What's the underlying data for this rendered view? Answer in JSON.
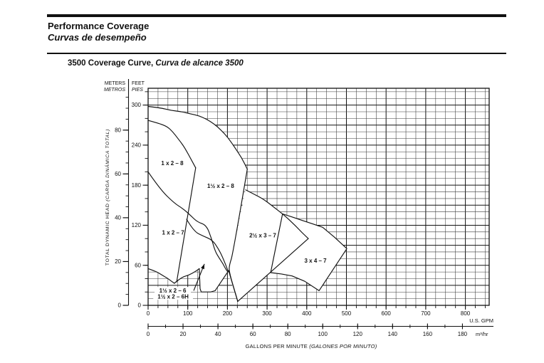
{
  "header": {
    "title_en": "Performance Coverage",
    "title_es": "Curvas de desempeño"
  },
  "heading": {
    "part_en": "3500 Coverage Curve,",
    "part_es": " Curva de alcance 3500"
  },
  "chart_data": {
    "type": "area",
    "variant": "pump-coverage-envelope",
    "title": "3500 Coverage Curve",
    "x_axis": {
      "primary_unit": "U.S. GPM",
      "primary_ticks": [
        0,
        100,
        200,
        300,
        400,
        500,
        600,
        700,
        800
      ],
      "primary_minor_step": 25,
      "primary_range": [
        0,
        860
      ],
      "secondary_unit": "m³/hr",
      "secondary_ticks": [
        0,
        20,
        40,
        60,
        80,
        100,
        120,
        140,
        160,
        180
      ],
      "secondary_minor_step": 10,
      "gpm_per_m3hr": 4.4029,
      "title_en": "GALLONS PER MINUTE ",
      "title_es": "(GALONES POR MINUTO)"
    },
    "y_axis": {
      "feet_label_en": "FEET",
      "feet_label_es": "PIES",
      "feet_ticks": [
        0,
        60,
        120,
        180,
        240,
        300
      ],
      "feet_minor_step": 20,
      "feet_range": [
        0,
        325
      ],
      "meters_label_en": "METERS",
      "meters_label_es": "METROS",
      "meters_ticks": [
        0,
        20,
        40,
        60,
        80
      ],
      "meters_minor_step": 5,
      "ft_per_m": 3.2808,
      "title_en": "TOTAL DYNAMIC HEAD ",
      "title_es": "(CARGA DINÁMICA TOTAL)"
    },
    "grid": {
      "gpm_minor": 25,
      "gpm_major": 100,
      "ft_minor": 10,
      "ft_major": 30
    },
    "regions": [
      {
        "label": "1 x 2 – 8",
        "gpm": 61,
        "ft": 213,
        "bg": false
      },
      {
        "label": "1½ x 2 – 8",
        "gpm": 183,
        "ft": 179,
        "bg": false
      },
      {
        "label": "1 x 2 – 7",
        "gpm": 63,
        "ft": 109,
        "bg": false
      },
      {
        "label": "2½ x 3 – 7",
        "gpm": 289,
        "ft": 105,
        "bg": false
      },
      {
        "label": "3 x 4 – 7",
        "gpm": 422,
        "ft": 67,
        "bg": false
      },
      {
        "label": "1½ x 2 – 6",
        "gpm": 62,
        "ft": 22,
        "bg": true
      },
      {
        "label": "1½ x 2 – 6H",
        "gpm": 63,
        "ft": 13,
        "bg": true
      }
    ],
    "fills": [
      {
        "name": "union-left-envelopes",
        "points": [
          [
            0,
            298
          ],
          [
            30,
            296
          ],
          [
            57,
            292
          ],
          [
            85,
            290
          ],
          [
            106,
            287
          ],
          [
            128,
            284
          ],
          [
            147,
            279
          ],
          [
            166,
            272
          ],
          [
            183,
            263
          ],
          [
            202,
            251
          ],
          [
            219,
            236
          ],
          [
            236,
            221
          ],
          [
            250,
            204
          ],
          [
            214,
            77
          ],
          [
            205,
            61
          ],
          [
            204,
            50
          ],
          [
            226,
            6
          ],
          [
            203,
            52
          ],
          [
            169,
            22
          ],
          [
            158,
            20
          ],
          [
            134,
            20
          ],
          [
            131,
            25
          ],
          [
            129,
            55
          ],
          [
            120,
            51
          ],
          [
            102,
            45
          ],
          [
            84,
            42
          ],
          [
            66,
            33
          ],
          [
            57,
            37
          ],
          [
            36,
            45
          ],
          [
            20,
            51
          ],
          [
            0,
            55
          ]
        ]
      },
      {
        "name": "envelope-2.5x3-7",
        "points": [
          [
            246,
            173
          ],
          [
            269,
            166
          ],
          [
            291,
            159
          ],
          [
            315,
            148
          ],
          [
            339,
            137
          ],
          [
            356,
            128
          ],
          [
            372,
            119
          ],
          [
            388,
            109
          ],
          [
            404,
            100
          ],
          [
            226,
            6
          ],
          [
            202,
            47
          ]
        ]
      },
      {
        "name": "envelope-3x4-7",
        "points": [
          [
            339,
            137
          ],
          [
            365,
            132
          ],
          [
            390,
            127
          ],
          [
            415,
            122
          ],
          [
            440,
            117
          ],
          [
            470,
            102
          ],
          [
            501,
            85
          ],
          [
            431,
            22
          ],
          [
            395,
            36
          ],
          [
            363,
            44
          ],
          [
            336,
            47
          ],
          [
            309,
            49
          ]
        ]
      }
    ],
    "curves": [
      {
        "name": "env-1.5x2-8-top",
        "smooth": true,
        "points": [
          [
            0,
            298
          ],
          [
            30,
            296
          ],
          [
            57,
            292
          ],
          [
            85,
            290
          ],
          [
            106,
            287
          ],
          [
            128,
            284
          ],
          [
            147,
            279
          ],
          [
            166,
            272
          ],
          [
            183,
            263
          ],
          [
            202,
            251
          ],
          [
            219,
            236
          ],
          [
            236,
            221
          ],
          [
            250,
            204
          ]
        ]
      },
      {
        "name": "env-1x2-8-top",
        "smooth": true,
        "points": [
          [
            0,
            277
          ],
          [
            25,
            273
          ],
          [
            48,
            268
          ],
          [
            62,
            260
          ],
          [
            75,
            250
          ],
          [
            88,
            240
          ],
          [
            97,
            231
          ],
          [
            108,
            219
          ],
          [
            120,
            206
          ]
        ]
      },
      {
        "name": "env-1x2-8-right",
        "smooth": false,
        "points": [
          [
            120,
            206
          ],
          [
            72,
            35
          ]
        ]
      },
      {
        "name": "env-1.5x2-8-right",
        "smooth": true,
        "points": [
          [
            250,
            204
          ],
          [
            214,
            77
          ],
          [
            205,
            61
          ],
          [
            204,
            50
          ],
          [
            226,
            6
          ]
        ]
      },
      {
        "name": "env-1x2-7-top",
        "smooth": true,
        "points": [
          [
            0,
            200
          ],
          [
            30,
            174
          ],
          [
            66,
            153
          ],
          [
            90,
            144
          ],
          [
            108,
            134
          ],
          [
            124,
            125
          ],
          [
            147,
            120
          ],
          [
            160,
            100
          ],
          [
            169,
            81
          ],
          [
            180,
            70
          ],
          [
            189,
            62
          ],
          [
            196,
            54
          ],
          [
            201,
            50
          ]
        ]
      },
      {
        "name": "env-1x2-7-bottom",
        "smooth": true,
        "points": [
          [
            97,
            129
          ],
          [
            115,
            111
          ],
          [
            138,
            104
          ],
          [
            162,
            98
          ],
          [
            177,
            85
          ],
          [
            188,
            72
          ],
          [
            196,
            60
          ],
          [
            201,
            52
          ]
        ]
      },
      {
        "name": "env-2.5x3-7-bottom",
        "smooth": false,
        "points": [
          [
            226,
            6
          ],
          [
            404,
            100
          ]
        ]
      },
      {
        "name": "env-2.5x3-7-top",
        "smooth": true,
        "points": [
          [
            246,
            173
          ],
          [
            269,
            166
          ],
          [
            291,
            159
          ],
          [
            315,
            148
          ],
          [
            339,
            137
          ],
          [
            356,
            128
          ],
          [
            372,
            119
          ],
          [
            388,
            109
          ],
          [
            404,
            100
          ]
        ]
      },
      {
        "name": "env-3x4-7-outline",
        "smooth": false,
        "closed": true,
        "points": [
          [
            339,
            137
          ],
          [
            365,
            132
          ],
          [
            390,
            127
          ],
          [
            415,
            122
          ],
          [
            440,
            117
          ],
          [
            470,
            102
          ],
          [
            501,
            85
          ],
          [
            431,
            22
          ],
          [
            395,
            36
          ],
          [
            363,
            44
          ],
          [
            336,
            47
          ],
          [
            309,
            49
          ]
        ]
      },
      {
        "name": "env-1.5x2-6h-top",
        "smooth": true,
        "points": [
          [
            0,
            55
          ],
          [
            20,
            51
          ],
          [
            36,
            45
          ],
          [
            48,
            41
          ],
          [
            57,
            37
          ],
          [
            66,
            33
          ]
        ]
      },
      {
        "name": "env-small-mid",
        "smooth": true,
        "points": [
          [
            66,
            33
          ],
          [
            84,
            42
          ],
          [
            102,
            45
          ],
          [
            120,
            51
          ],
          [
            129,
            55
          ]
        ]
      },
      {
        "name": "env-1.5x2-6-pocket",
        "smooth": false,
        "points": [
          [
            129,
            55
          ],
          [
            131,
            25
          ],
          [
            134,
            20
          ],
          [
            158,
            20
          ],
          [
            169,
            22
          ]
        ]
      },
      {
        "name": "env-small-rise",
        "smooth": false,
        "points": [
          [
            169,
            22
          ],
          [
            186,
            37
          ],
          [
            203,
            52
          ]
        ]
      },
      {
        "name": "env-v-left-edge",
        "smooth": false,
        "points": [
          [
            203,
            52
          ],
          [
            226,
            6
          ]
        ]
      }
    ],
    "arrow": {
      "from_gpm": 115,
      "from_ft": 22,
      "to_gpm": 142,
      "to_ft": 62
    }
  }
}
